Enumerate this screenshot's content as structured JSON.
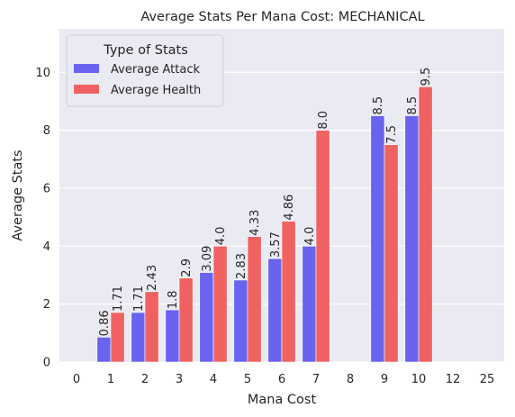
{
  "chart_data": {
    "type": "bar",
    "title": "Average Stats Per Mana Cost: MECHANICAL",
    "xlabel": "Mana Cost",
    "ylabel": "Average Stats",
    "categories": [
      "0",
      "1",
      "2",
      "3",
      "4",
      "5",
      "6",
      "7",
      "8",
      "9",
      "10",
      "12",
      "25"
    ],
    "ylim": [
      0,
      11.5
    ],
    "yticks": [
      0,
      2,
      4,
      6,
      8,
      10
    ],
    "grid": true,
    "legend": {
      "title": "Type of Stats",
      "placement": "top-left"
    },
    "series": [
      {
        "name": "Average Attack",
        "color": "#6a63f0",
        "values": [
          null,
          0.86,
          1.71,
          1.8,
          3.09,
          2.83,
          3.57,
          4.0,
          null,
          8.5,
          8.5,
          null,
          null
        ],
        "labels": [
          null,
          "0.86",
          "1.71",
          "1.8",
          "3.09",
          "2.83",
          "3.57",
          "4.0",
          null,
          "8.5",
          "8.5",
          null,
          null
        ]
      },
      {
        "name": "Average Health",
        "color": "#f06262",
        "values": [
          null,
          1.71,
          2.43,
          2.9,
          4.0,
          4.33,
          4.86,
          8.0,
          null,
          7.5,
          9.5,
          null,
          null
        ],
        "labels": [
          null,
          "1.71",
          "2.43",
          "2.9",
          "4.0",
          "4.33",
          "4.86",
          "8.0",
          null,
          "7.5",
          "9.5",
          null,
          null
        ]
      }
    ]
  },
  "colors": {
    "plot_background": "#eaeaf2",
    "grid": "#ffffff",
    "legend_background": "#eaeaf2"
  }
}
